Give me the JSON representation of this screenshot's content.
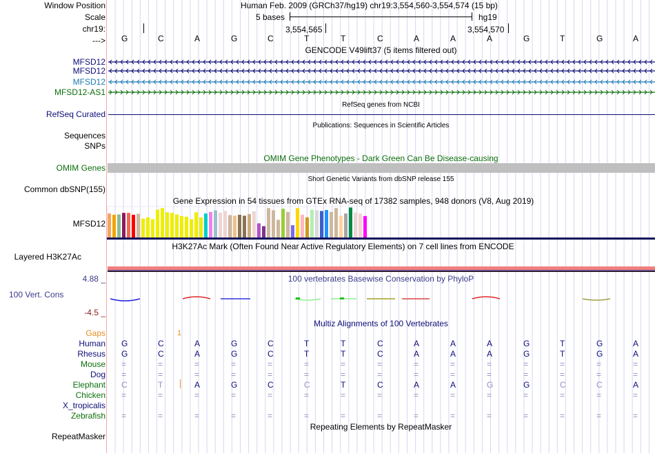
{
  "header": {
    "window_position_label": "Window Position",
    "window_position_text": "Human Feb. 2009 (GRCh37/hg19)   chr19:3,554,560-3,554,574 (15 bp)",
    "scale_label": "Scale",
    "scale_text": "5 bases",
    "scale_assembly": "hg19",
    "chrom_label": "chr19:",
    "ruler_tick_1": "3,554,565",
    "ruler_tick_2": "3,554,570",
    "strand_label": "--->",
    "bases": [
      "G",
      "C",
      "A",
      "G",
      "C",
      "T",
      "T",
      "C",
      "A",
      "A",
      "A",
      "G",
      "T",
      "G",
      "A"
    ]
  },
  "gencode": {
    "title": "GENCODE V49lift37 (5 items filtered out)",
    "tracks": [
      {
        "label": "MFSD12",
        "strand": "-",
        "color": "#0c0c78"
      },
      {
        "label": "MFSD12",
        "strand": "-",
        "color": "#0c0c78"
      },
      {
        "label": "MFSD12",
        "strand": "-",
        "color": "#1a7ab5"
      },
      {
        "label": "MFSD12-AS1",
        "strand": "+",
        "color": "#0b6e0b"
      }
    ]
  },
  "refseq": {
    "label": "RefSeq Curated",
    "title": "RefSeq genes from NCBI",
    "color": "#0c0c78"
  },
  "publications": {
    "label": "Sequences",
    "title": "Publications: Sequences in Scientific Articles"
  },
  "snps_label": "SNPs",
  "omim": {
    "label": "OMIM Genes",
    "title": "OMIM Gene Phenotypes - Dark Green Can Be Disease-causing",
    "color": "#0b6e0b",
    "bar_color": "#bfbfbf"
  },
  "dbsnp": {
    "label": "Common dbSNP(155)",
    "title": "Short Genetic Variants from dbSNP release 155"
  },
  "gtex": {
    "label": "MFSD12",
    "title": "Gene Expression in 54 tissues from GTEx RNA-seq of 17382 samples, 948 donors (V8, Aug 2019)",
    "bar_relative_heights": [
      0.78,
      0.74,
      0.75,
      0.8,
      0.8,
      0.74,
      0.77,
      0.62,
      0.66,
      0.6,
      0.9,
      0.95,
      0.82,
      0.8,
      0.75,
      0.7,
      0.68,
      0.6,
      0.82,
      0.66,
      0.78,
      0.83,
      0.88,
      0.81,
      0.86,
      0.73,
      0.71,
      0.74,
      0.71,
      0.76,
      0.85,
      0.47,
      0.38,
      0.95,
      0.88,
      0.58,
      0.93,
      0.83,
      0.41,
      0.95,
      0.74,
      0.66,
      0.9,
      0.88,
      0.86,
      0.89,
      0.83,
      0.95,
      0.71,
      0.78,
      0.97,
      0.81,
      0.78,
      0.7
    ],
    "bar_colors": [
      "#f7a35c",
      "#f0a30a",
      "#8fbc8f",
      "#8b1c62",
      "#ee6a50",
      "#ff0000",
      "#cdb79e",
      "#eeee00",
      "#eeee00",
      "#eeee00",
      "#eeee00",
      "#eeee00",
      "#eeee00",
      "#eeee00",
      "#eeee00",
      "#eeee00",
      "#eeee00",
      "#eeee00",
      "#eeee00",
      "#eeee00",
      "#00cdcd",
      "#ee82ee",
      "#9ac0cd",
      "#eed5d2",
      "#eed5d2",
      "#cdb79e",
      "#edc184",
      "#8b7355",
      "#8b7355",
      "#cdaa7d",
      "#eed5d2",
      "#b452cd",
      "#7a378b",
      "#cdb79e",
      "#cdb79e",
      "#cdb79e",
      "#9acd32",
      "#cdb79e",
      "#7b68ee",
      "#ffd700",
      "#ffb6c1",
      "#cd9b1d",
      "#b4eeb4",
      "#d9d9d9",
      "#3a5fcd",
      "#1e90ff",
      "#cdb79e",
      "#cdb79e",
      "#ffd39b",
      "#a6a6a6",
      "#008b45",
      "#eed5d2",
      "#eed5d2",
      "#ff00ff"
    ]
  },
  "h3k27ac": {
    "label": "Layered H3K27Ac",
    "title": "H3K27Ac Mark (Often Found Near Active Regulatory Elements) on 7 cell lines from ENCODE"
  },
  "phylop": {
    "label": "100 Vert. Cons",
    "title": "100 vertebrates Basewise Conservation by PhyloP",
    "max": "4.88 _",
    "min": "-4.5 _"
  },
  "multiz": {
    "title": "Multiz Alignments of 100 Vertebrates",
    "gaps_label": "Gaps",
    "gap_count": "1",
    "species": [
      {
        "name": "Human",
        "color": "#0c0c78",
        "row": [
          "G",
          "C",
          "A",
          "G",
          "C",
          "T",
          "T",
          "C",
          "A",
          "A",
          "A",
          "G",
          "T",
          "G",
          "A"
        ]
      },
      {
        "name": "Rhesus",
        "color": "#0c0c78",
        "row": [
          "G",
          "C",
          "A",
          "G",
          "C",
          "T",
          "T",
          "C",
          "A",
          "A",
          "A",
          "G",
          "T",
          "G",
          "A"
        ]
      },
      {
        "name": "Mouse",
        "color": "#0b6e0b",
        "row": [
          "=",
          "=",
          "=",
          "=",
          "=",
          "=",
          "=",
          "=",
          "=",
          "=",
          "=",
          "=",
          "=",
          "=",
          "="
        ]
      },
      {
        "name": "Dog",
        "color": "#0c0c78",
        "row": [
          "=",
          "=",
          "=",
          "=",
          "=",
          "=",
          "=",
          "=",
          "=",
          "=",
          "=",
          "=",
          "=",
          "=",
          "="
        ]
      },
      {
        "name": "Elephant",
        "color": "#0b6e0b",
        "row": [
          "C",
          "T",
          "A",
          "G",
          "C",
          "C",
          "T",
          "C",
          "A",
          "A",
          "G",
          "G",
          "C",
          "C",
          "A"
        ],
        "mismatch": [
          true,
          true,
          false,
          false,
          false,
          true,
          false,
          false,
          false,
          false,
          true,
          false,
          true,
          true,
          false
        ]
      },
      {
        "name": "Chicken",
        "color": "#0b6e0b",
        "row": [
          "=",
          "=",
          "=",
          "=",
          "=",
          "=",
          "=",
          "=",
          "=",
          "=",
          "=",
          "=",
          "=",
          "=",
          "="
        ]
      },
      {
        "name": "X_tropicalis",
        "color": "#0c0c78",
        "row": [
          "",
          "",
          "",
          "",
          "",
          "",
          "",
          "",
          "",
          "",
          "",
          "",
          "",
          "",
          ""
        ]
      },
      {
        "name": "Zebrafish",
        "color": "#0b6e0b",
        "row": [
          "=",
          "=",
          "=",
          "=",
          "=",
          "=",
          "=",
          "=",
          "=",
          "=",
          "=",
          "=",
          "=",
          "=",
          "="
        ]
      }
    ]
  },
  "repeatmasker": {
    "label": "RepeatMasker",
    "title": "Repeating Elements by RepeatMasker"
  }
}
